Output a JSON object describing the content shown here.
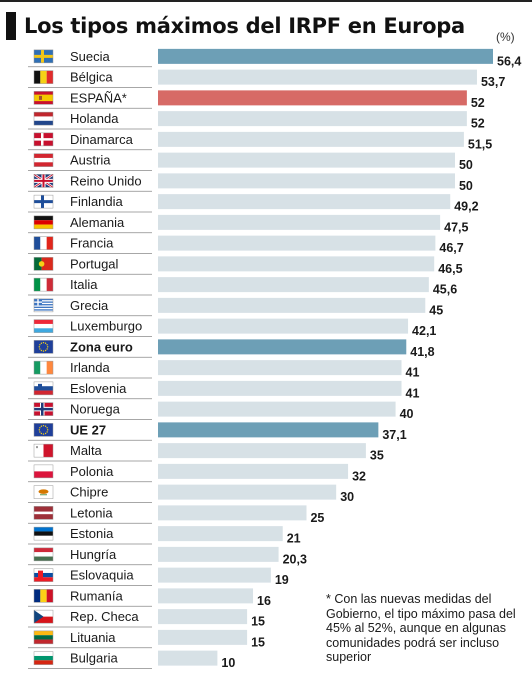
{
  "title": "Los tipos máximos del IRPF en Europa",
  "unit": "(%)",
  "footnote": "* Con las nuevas medidas del Gobierno, el tipo máximo pasa del 45% al 52%, aunque en algunas comunidades podrá ser incluso superior",
  "colors": {
    "default": "#d7e1e6",
    "highlight_blue": "#6d9fb6",
    "highlight_red": "#d76a66",
    "separator": "#8a8a8a"
  },
  "chart_data": {
    "type": "bar",
    "orientation": "horizontal",
    "xlim": [
      0,
      56.4
    ],
    "categories": [
      "Suecia",
      "Bélgica",
      "ESPAÑA*",
      "Holanda",
      "Dinamarca",
      "Austria",
      "Reino Unido",
      "Finlandia",
      "Alemania",
      "Francia",
      "Portugal",
      "Italia",
      "Grecia",
      "Luxemburgo",
      "Zona euro",
      "Irlanda",
      "Eslovenia",
      "Noruega",
      "UE 27",
      "Malta",
      "Polonia",
      "Chipre",
      "Letonia",
      "Estonia",
      "Hungría",
      "Eslovaquia",
      "Rumanía",
      "Rep. Checa",
      "Lituania",
      "Bulgaria"
    ],
    "values": [
      56.4,
      53.7,
      52,
      52,
      51.5,
      50,
      50,
      49.2,
      47.5,
      46.7,
      46.5,
      45.6,
      45,
      42.1,
      41.8,
      41,
      41,
      40,
      37.1,
      35,
      32,
      30,
      25,
      21,
      20.3,
      19,
      16,
      15,
      15,
      10
    ],
    "value_labels": [
      "56,4",
      "53,7",
      "52",
      "52",
      "51,5",
      "50",
      "50",
      "49,2",
      "47,5",
      "46,7",
      "46,5",
      "45,6",
      "45",
      "42,1",
      "41,8",
      "41",
      "41",
      "40",
      "37,1",
      "35",
      "32",
      "30",
      "25",
      "21",
      "20,3",
      "19",
      "16",
      "15",
      "15",
      "10"
    ],
    "highlight": [
      "blue",
      "none",
      "red",
      "none",
      "none",
      "none",
      "none",
      "none",
      "none",
      "none",
      "none",
      "none",
      "none",
      "none",
      "blue",
      "none",
      "none",
      "none",
      "blue",
      "none",
      "none",
      "none",
      "none",
      "none",
      "none",
      "none",
      "none",
      "none",
      "none",
      "none"
    ],
    "bold_labels": [
      false,
      false,
      false,
      false,
      false,
      false,
      false,
      false,
      false,
      false,
      false,
      false,
      false,
      false,
      true,
      false,
      false,
      false,
      true,
      false,
      false,
      false,
      false,
      false,
      false,
      false,
      false,
      false,
      false,
      false
    ],
    "flag_icons": [
      "flag-sweden",
      "flag-belgium",
      "flag-spain",
      "flag-netherlands",
      "flag-denmark",
      "flag-austria",
      "flag-uk",
      "flag-finland",
      "flag-germany",
      "flag-france",
      "flag-portugal",
      "flag-italy",
      "flag-greece",
      "flag-luxembourg",
      "flag-eu",
      "flag-ireland",
      "flag-slovenia",
      "flag-norway",
      "flag-eu",
      "flag-malta",
      "flag-poland",
      "flag-cyprus",
      "flag-latvia",
      "flag-estonia",
      "flag-hungary",
      "flag-slovakia",
      "flag-romania",
      "flag-czech",
      "flag-lithuania",
      "flag-bulgaria"
    ]
  }
}
